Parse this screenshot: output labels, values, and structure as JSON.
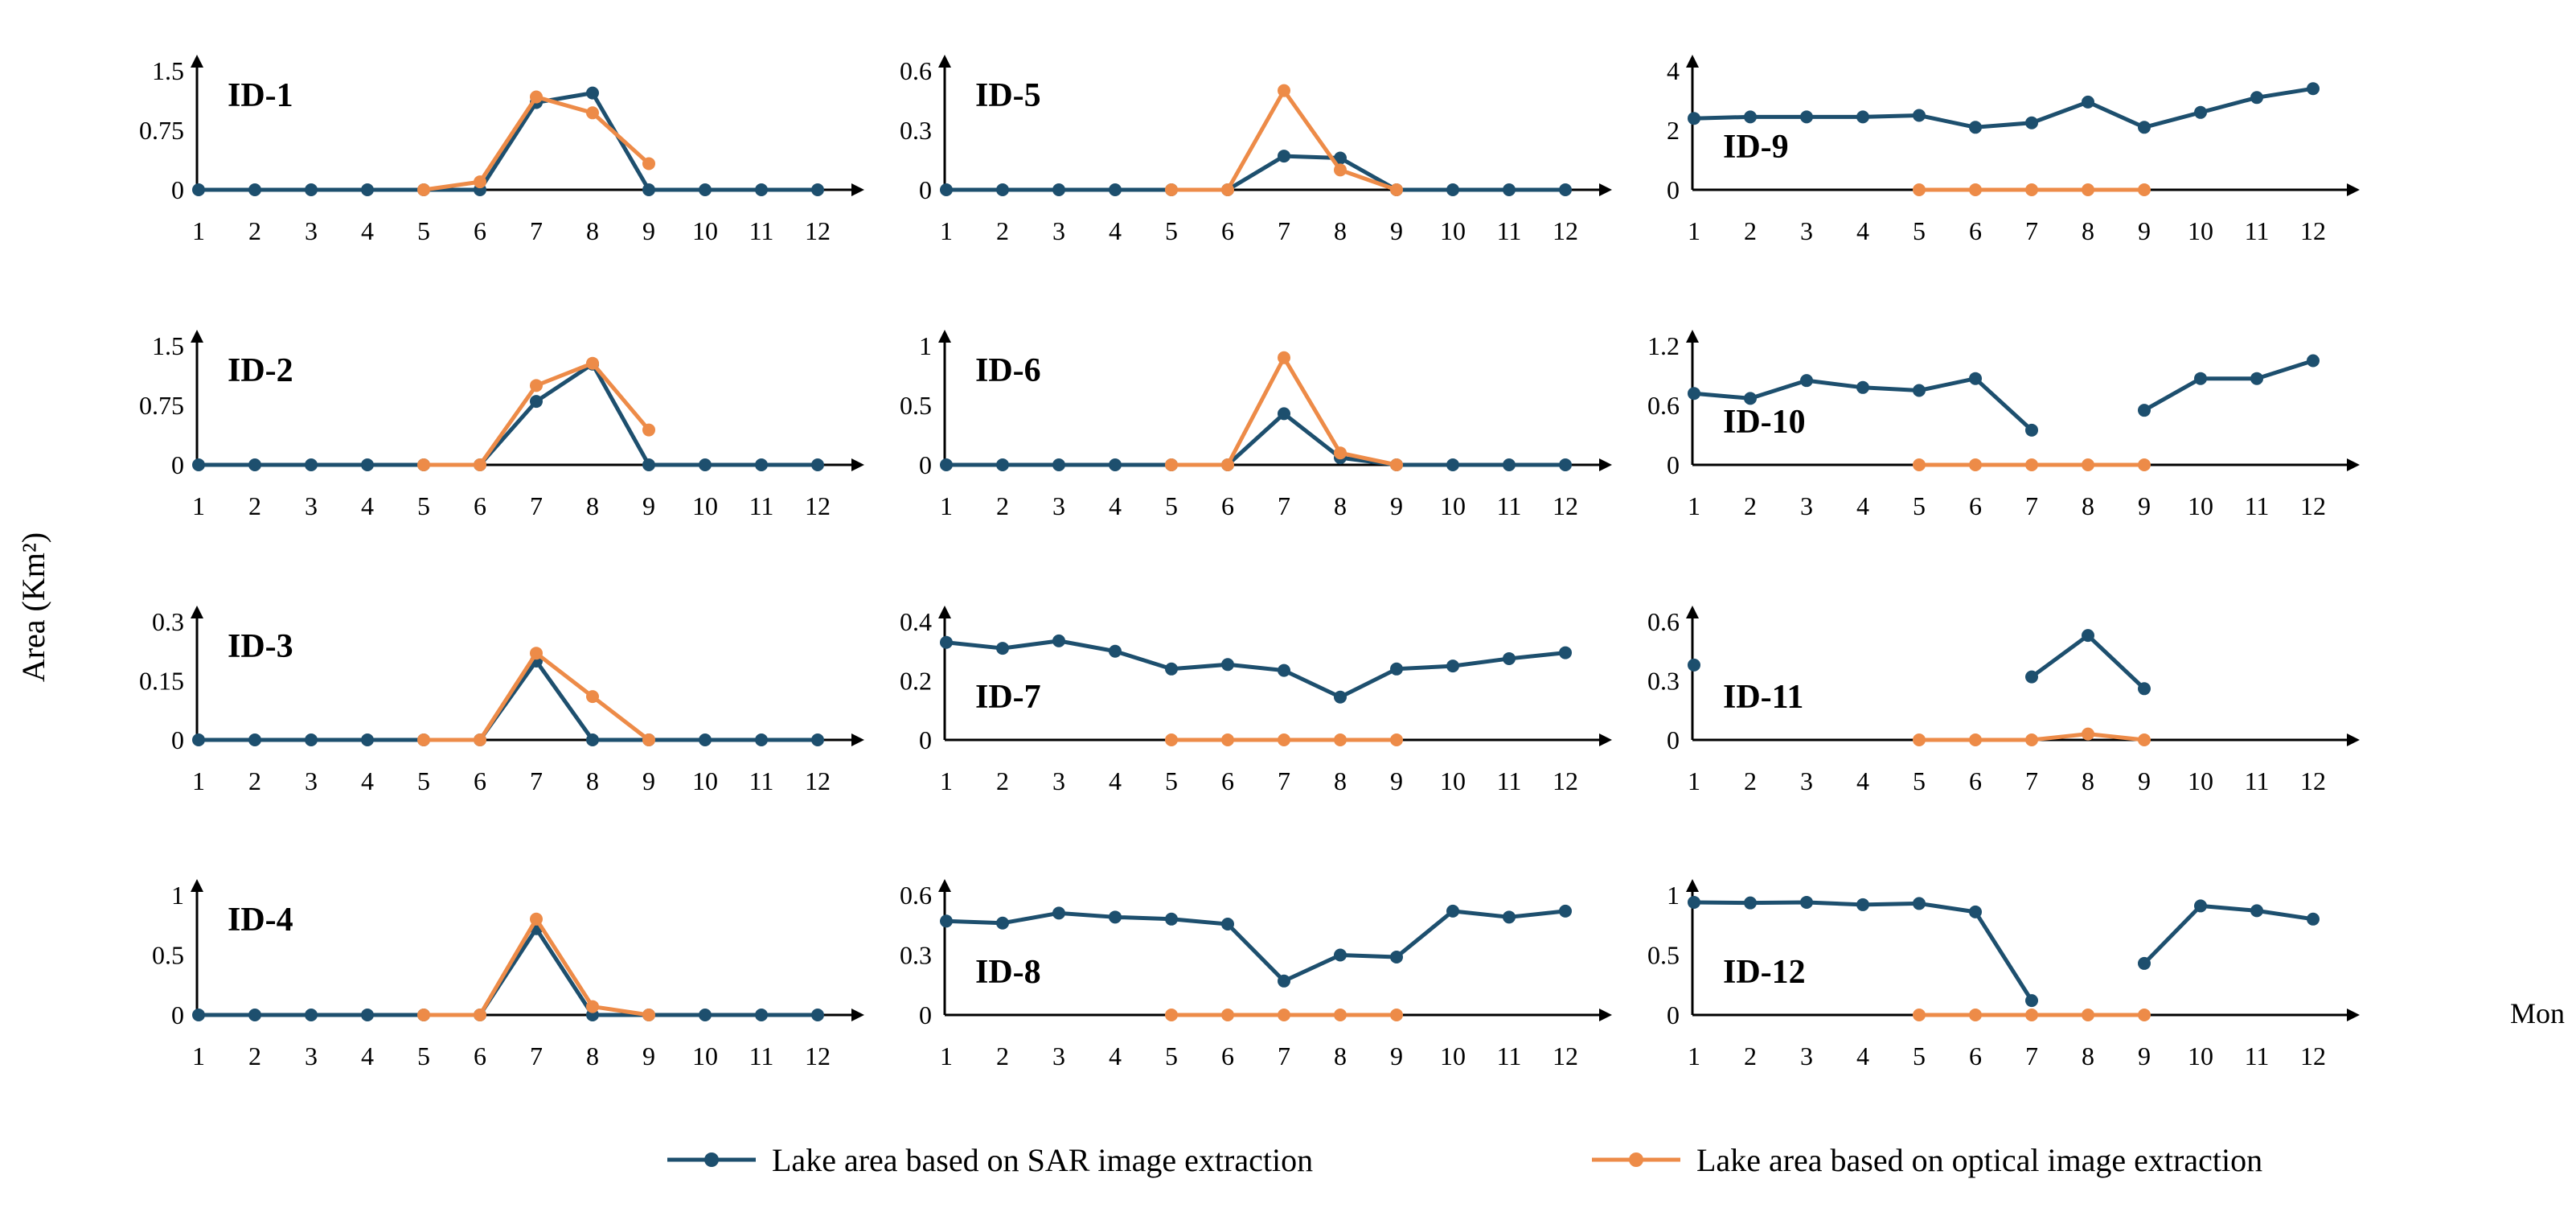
{
  "chart_data": {
    "type": "line",
    "ylabel": "Area (Km²)",
    "xlabel": "Mon",
    "x": [
      1,
      2,
      3,
      4,
      5,
      6,
      7,
      8,
      9,
      10,
      11,
      12
    ],
    "legend": [
      {
        "name": "Lake area based on SAR image extraction",
        "color": "#1d4f6e"
      },
      {
        "name": "Lake area based on optical image extraction",
        "color": "#ed8b48"
      }
    ],
    "panels": [
      {
        "id": "ID-1",
        "ylim": [
          0,
          1.5
        ],
        "yticks": [
          "0",
          "0.75",
          "1.5"
        ],
        "ytick_values": [
          0,
          0.75,
          1.5
        ],
        "sar": [
          0,
          0,
          0,
          0,
          0,
          0,
          1.1,
          1.22,
          0,
          0,
          0,
          0
        ],
        "optical": [
          null,
          null,
          null,
          null,
          0,
          0.1,
          1.17,
          0.97,
          0.33,
          null,
          null,
          null
        ]
      },
      {
        "id": "ID-5",
        "ylim": [
          0,
          0.6
        ],
        "yticks": [
          "0",
          "0.3",
          "0.6"
        ],
        "ytick_values": [
          0,
          0.3,
          0.6
        ],
        "sar": [
          0,
          0,
          0,
          0,
          0,
          0,
          0.17,
          0.16,
          0,
          0,
          0,
          0
        ],
        "optical": [
          null,
          null,
          null,
          null,
          0,
          0,
          0.5,
          0.1,
          0,
          null,
          null,
          null
        ]
      },
      {
        "id": "ID-9",
        "ylim": [
          0,
          4
        ],
        "yticks": [
          "0",
          "2",
          "4"
        ],
        "ytick_values": [
          0,
          2,
          4
        ],
        "sar": [
          2.4,
          2.45,
          2.45,
          2.45,
          2.5,
          2.1,
          2.25,
          2.95,
          2.1,
          2.6,
          3.1,
          3.4
        ],
        "optical": [
          null,
          null,
          null,
          null,
          0,
          0,
          0,
          0,
          0,
          null,
          null,
          null
        ]
      },
      {
        "id": "ID-2",
        "ylim": [
          0,
          1.5
        ],
        "yticks": [
          "0",
          "0.75",
          "1.5"
        ],
        "ytick_values": [
          0,
          0.75,
          1.5
        ],
        "sar": [
          0,
          0,
          0,
          0,
          0,
          0,
          0.8,
          1.27,
          0,
          0,
          0,
          0
        ],
        "optical": [
          null,
          null,
          null,
          null,
          0,
          0,
          1.0,
          1.28,
          0.44,
          null,
          null,
          null
        ]
      },
      {
        "id": "ID-6",
        "ylim": [
          0,
          1
        ],
        "yticks": [
          "0",
          "0.5",
          "1"
        ],
        "ytick_values": [
          0,
          0.5,
          1
        ],
        "sar": [
          0,
          0,
          0,
          0,
          0,
          0,
          0.43,
          0.06,
          0,
          0,
          0,
          0
        ],
        "optical": [
          null,
          null,
          null,
          null,
          0,
          0,
          0.9,
          0.1,
          0,
          null,
          null,
          null
        ]
      },
      {
        "id": "ID-10",
        "ylim": [
          0,
          1.2
        ],
        "yticks": [
          "0",
          "0.6",
          "1.2"
        ],
        "ytick_values": [
          0,
          0.6,
          1.2
        ],
        "sar": [
          0.72,
          0.67,
          0.85,
          0.78,
          0.75,
          0.87,
          0.35,
          null,
          0.55,
          0.87,
          0.87,
          1.05
        ],
        "optical": [
          null,
          null,
          null,
          null,
          0,
          0,
          0,
          0,
          0,
          null,
          null,
          null
        ]
      },
      {
        "id": "ID-3",
        "ylim": [
          0,
          0.3
        ],
        "yticks": [
          "0",
          "0.15",
          "0.3"
        ],
        "ytick_values": [
          0,
          0.15,
          0.3
        ],
        "sar": [
          0,
          0,
          0,
          0,
          0,
          0,
          0.2,
          0,
          0,
          0,
          0,
          0
        ],
        "optical": [
          null,
          null,
          null,
          null,
          0,
          0,
          0.22,
          0.11,
          0,
          null,
          null,
          null
        ]
      },
      {
        "id": "ID-7",
        "ylim": [
          0,
          0.4
        ],
        "yticks": [
          "0",
          "0.2",
          "0.4"
        ],
        "ytick_values": [
          0,
          0.2,
          0.4
        ],
        "sar": [
          0.33,
          0.31,
          0.335,
          0.3,
          0.24,
          0.255,
          0.235,
          0.145,
          0.24,
          0.25,
          0.275,
          0.295
        ],
        "optical": [
          null,
          null,
          null,
          null,
          0,
          0,
          0,
          0,
          0,
          null,
          null,
          null
        ]
      },
      {
        "id": "ID-11",
        "ylim": [
          0,
          0.6
        ],
        "yticks": [
          "0",
          "0.3",
          "0.6"
        ],
        "ytick_values": [
          0,
          0.3,
          0.6
        ],
        "sar": [
          0.38,
          null,
          null,
          null,
          null,
          null,
          0.32,
          0.53,
          0.26,
          null,
          null,
          null
        ],
        "optical": [
          null,
          null,
          null,
          null,
          0,
          0,
          0,
          0.03,
          0,
          null,
          null,
          null
        ]
      },
      {
        "id": "ID-4",
        "ylim": [
          0,
          1
        ],
        "yticks": [
          "0",
          "0.5",
          "1"
        ],
        "ytick_values": [
          0,
          0.5,
          1
        ],
        "sar": [
          0,
          0,
          0,
          0,
          0,
          0,
          0.72,
          0,
          0,
          0,
          0,
          0
        ],
        "optical": [
          null,
          null,
          null,
          null,
          0,
          0,
          0.8,
          0.07,
          0,
          null,
          null,
          null
        ]
      },
      {
        "id": "ID-8",
        "ylim": [
          0,
          0.6
        ],
        "yticks": [
          "0",
          "0.3",
          "0.6"
        ],
        "ytick_values": [
          0,
          0.3,
          0.6
        ],
        "sar": [
          0.47,
          0.46,
          0.51,
          0.49,
          0.48,
          0.455,
          0.17,
          0.3,
          0.29,
          0.52,
          0.49,
          0.52
        ],
        "optical": [
          null,
          null,
          null,
          null,
          0,
          0,
          0,
          0,
          0,
          null,
          null,
          null
        ]
      },
      {
        "id": "ID-12",
        "ylim": [
          0,
          1
        ],
        "yticks": [
          "0",
          "0.5",
          "1"
        ],
        "ytick_values": [
          0,
          0.5,
          1
        ],
        "sar": [
          0.94,
          0.935,
          0.94,
          0.92,
          0.93,
          0.86,
          0.12,
          null,
          0.43,
          0.91,
          0.87,
          0.8
        ],
        "optical": [
          null,
          null,
          null,
          null,
          0,
          0,
          0,
          0,
          0,
          null,
          null,
          null
        ]
      }
    ]
  }
}
